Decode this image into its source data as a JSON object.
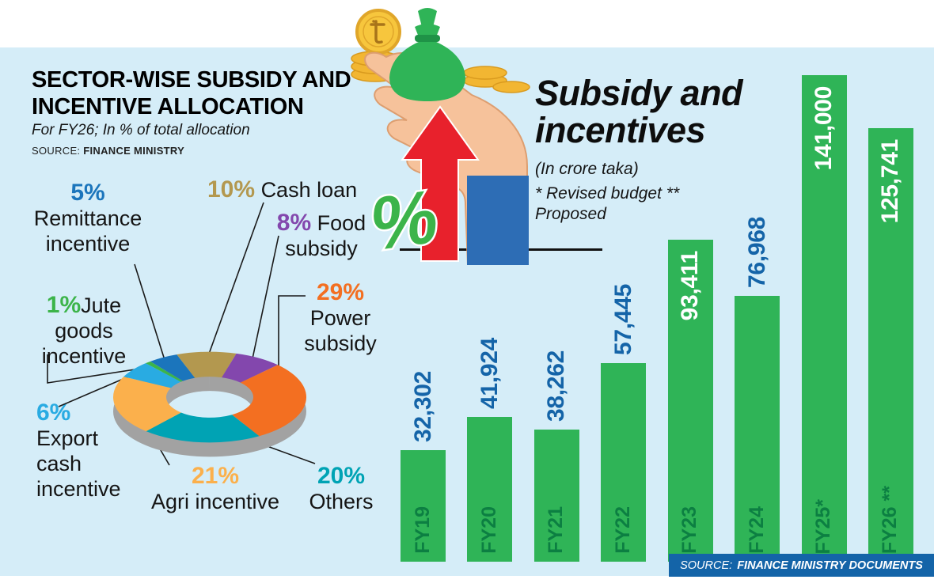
{
  "page": {
    "background": "#d5edf8",
    "top_band": "#ffffff"
  },
  "left_panel": {
    "title_line1": "SECTOR-WISE SUBSIDY AND",
    "title_line2": "INCENTIVE ALLOCATION",
    "subtitle": "For FY26; In % of total allocation",
    "source_label": "SOURCE:",
    "source_value": "FINANCE MINISTRY"
  },
  "donut_display": {
    "cash_loan_pct": "10%",
    "cash_loan_label": "Cash loan",
    "remittance_pct": "5%",
    "remittance_line1": "Remittance",
    "remittance_line2": "incentive",
    "food_pct": "8%",
    "food_line1": "Food",
    "food_line2": "subsidy",
    "power_pct": "29%",
    "power_line1": "Power",
    "power_line2": "subsidy",
    "jute_pct": "1%",
    "jute_inline": "Jute",
    "jute_line2": "goods",
    "jute_line3": "incentive",
    "export_pct": "6%",
    "export_line1": "Export",
    "export_line2": "cash",
    "export_line3": "incentive",
    "agri_pct": "21%",
    "agri_label": "Agri incentive",
    "others_pct": "20%",
    "others_label": "Others"
  },
  "right_panel": {
    "title": "Subsidy and incentives",
    "unit_note": "(In crore taka)",
    "footnote": "* Revised budget ** Proposed",
    "source_label": "SOURCE:",
    "source_value": "FINANCE MINISTRY DOCUMENTS",
    "source_bg": "#1464a8"
  },
  "illustration": {
    "coin_symbol": "৳",
    "percent_glyph": "%"
  },
  "chart_data": [
    {
      "type": "pie",
      "donut": true,
      "inner_radius_ratio": 0.45,
      "title": "Sector-wise subsidy and incentive allocation",
      "subtitle": "For FY26; In % of total allocation",
      "unit": "%",
      "start_angle": -20,
      "legend": false,
      "segments": [
        {
          "label": "Cash loan",
          "value": 10,
          "color": "#b3984f"
        },
        {
          "label": "Food subsidy",
          "value": 8,
          "color": "#8347ad"
        },
        {
          "label": "Power subsidy",
          "value": 29,
          "color": "#f36f21"
        },
        {
          "label": "Others",
          "value": 20,
          "color": "#00a3b4"
        },
        {
          "label": "Agri incentive",
          "value": 21,
          "color": "#fbb04c"
        },
        {
          "label": "Export cash incentive",
          "value": 6,
          "color": "#29abe2"
        },
        {
          "label": "Jute goods incentive",
          "value": 1,
          "color": "#3cb44a"
        },
        {
          "label": "Remittance incentive",
          "value": 5,
          "color": "#1b75bc"
        }
      ]
    },
    {
      "type": "bar",
      "title": "Subsidy and incentives",
      "unit": "crore taka",
      "footnote": "* Revised budget ** Proposed",
      "categories": [
        "FY19",
        "FY20",
        "FY21",
        "FY22",
        "FY23",
        "FY24",
        "FY25*",
        "FY26 **"
      ],
      "values": [
        32302,
        41924,
        38262,
        57445,
        93411,
        76968,
        141000,
        125741
      ],
      "value_labels": [
        "32,302",
        "41,924",
        "38,262",
        "57,445",
        "93,411",
        "76,968",
        "141,000",
        "125,741"
      ],
      "ylim": [
        0,
        141000
      ],
      "grid": false,
      "legend": false,
      "bar_color": "#2fb457",
      "category_color": "#0c7f42",
      "value_color_outside": "#1464a8",
      "value_color_inside": "#ffffff"
    }
  ]
}
